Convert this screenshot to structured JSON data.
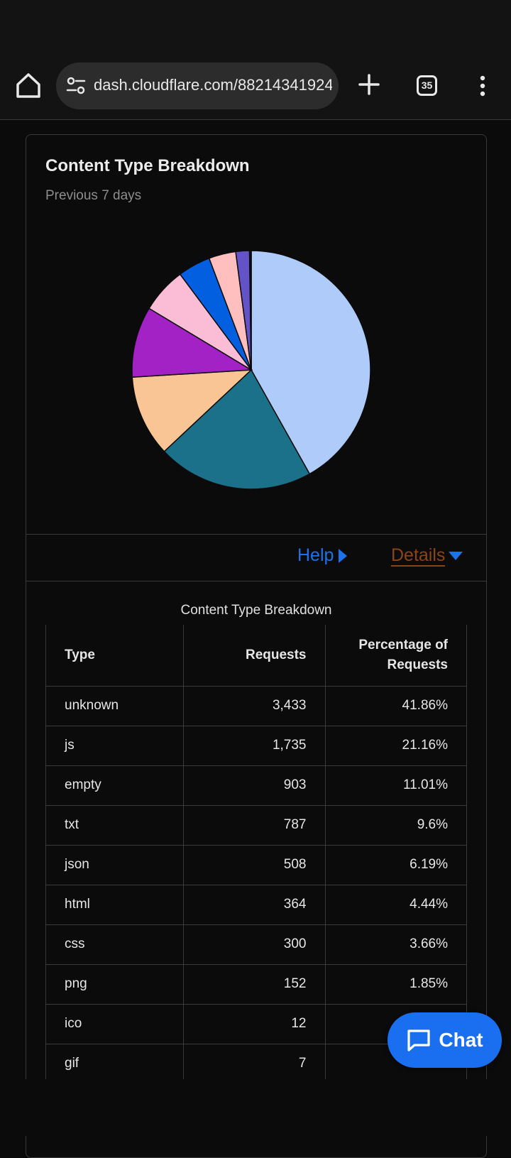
{
  "browser": {
    "url": "dash.cloudflare.com/88214341924",
    "tab_count": "35",
    "icons": [
      "home-icon",
      "site-settings-icon",
      "plus-icon",
      "tab-switcher-icon",
      "more-vert-icon"
    ]
  },
  "card": {
    "title": "Content Type Breakdown",
    "subtitle": "Previous 7 days",
    "help_label": "Help",
    "details_label": "Details"
  },
  "chart_data": {
    "type": "pie",
    "categories": [
      "unknown",
      "js",
      "empty",
      "txt",
      "json",
      "html",
      "css",
      "png",
      "ico",
      "gif"
    ],
    "values": [
      3433,
      1735,
      903,
      787,
      508,
      364,
      300,
      152,
      12,
      7
    ],
    "colors": [
      "#aecbfa",
      "#1b7189",
      "#f9c594",
      "#a322c6",
      "#fbbdd6",
      "#025fe0",
      "#ffbfbe",
      "#6453c6",
      "#c4c4c4",
      "#888888"
    ]
  },
  "table": {
    "caption": "Content Type Breakdown",
    "headers": [
      "Type",
      "Requests",
      "Percentage of Requests"
    ],
    "rows": [
      [
        "unknown",
        "3,433",
        "41.86%"
      ],
      [
        "js",
        "1,735",
        "21.16%"
      ],
      [
        "empty",
        "903",
        "11.01%"
      ],
      [
        "txt",
        "787",
        "9.6%"
      ],
      [
        "json",
        "508",
        "6.19%"
      ],
      [
        "html",
        "364",
        "4.44%"
      ],
      [
        "css",
        "300",
        "3.66%"
      ],
      [
        "png",
        "152",
        "1.85%"
      ],
      [
        "ico",
        "12",
        ""
      ],
      [
        "gif",
        "7",
        ""
      ]
    ]
  },
  "chat": {
    "label": "Chat"
  }
}
